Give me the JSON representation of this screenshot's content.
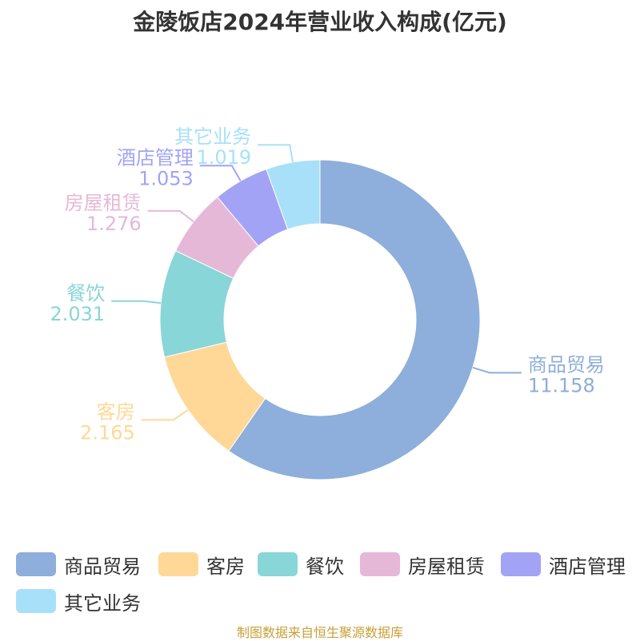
{
  "title": "金陵饭店2024年营业收入构成(亿元)",
  "source": "制图数据来自恒生聚源数据库",
  "chart_data": {
    "type": "pie",
    "donut": true,
    "start_angle_deg": 0,
    "direction": "clockwise",
    "slices": [
      {
        "name": "商品贸易",
        "value": 11.158,
        "label": "11.158",
        "color": "#8eaedb"
      },
      {
        "name": "客房",
        "value": 2.165,
        "label": "2.165",
        "color": "#ffd898"
      },
      {
        "name": "餐饮",
        "value": 2.031,
        "label": "2.031",
        "color": "#88d6d8"
      },
      {
        "name": "房屋租赁",
        "value": 1.276,
        "label": "1.276",
        "color": "#e6b8d8"
      },
      {
        "name": "酒店管理",
        "value": 1.053,
        "label": "1.053",
        "color": "#a2a3f4"
      },
      {
        "name": "其它业务",
        "value": 1.019,
        "label": "1.019",
        "color": "#a8e0fa"
      }
    ],
    "legend": {
      "position": "bottom"
    }
  }
}
